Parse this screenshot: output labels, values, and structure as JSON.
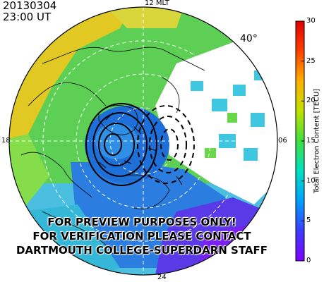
{
  "header": {
    "date": "20130304",
    "time": "23:00 UT"
  },
  "mlt_labels": {
    "top": "12 MLT",
    "left": "18",
    "right": "06",
    "bottom": "24"
  },
  "latitude_label": "40°",
  "watermark": [
    "FOR PREVIEW PURPOSES ONLY!",
    "FOR VERIFICATION PLEASE CONTACT",
    "DARTMOUTH COLLEGE-SUPERDARN STAFF"
  ],
  "colorbar": {
    "title": "Total Electron Content [TECU]",
    "ticks": [
      "0",
      "5",
      "10",
      "15",
      "20",
      "25",
      "30"
    ],
    "range": [
      0,
      30
    ],
    "colors": [
      "#8000ff",
      "#3c3cff",
      "#00a0ff",
      "#00e0c0",
      "#40e040",
      "#c0e000",
      "#ffb000",
      "#ff4000",
      "#e00000"
    ]
  },
  "map": {
    "colors": {
      "polar_cap": "#1f6fd8",
      "midlat_green": "#6ad64a",
      "dayside_yellow": "#e6c91e",
      "nightside_cyan": "#48c8d8",
      "contour": "#000000",
      "grid": "#ffffff"
    }
  }
}
